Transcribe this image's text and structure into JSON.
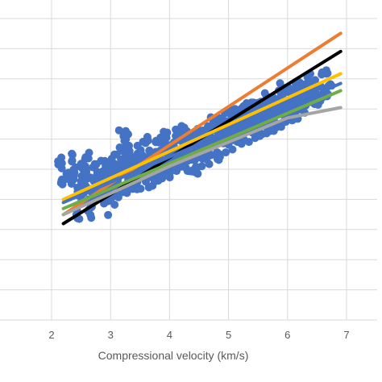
{
  "chart_data": {
    "type": "scatter",
    "xlabel": "Compressional velocity (km/s)",
    "ylabel": "",
    "xlim": [
      1.5,
      7.1
    ],
    "x_ticks": [
      2,
      3,
      4,
      5,
      6,
      7
    ],
    "grid": true,
    "legend": "none",
    "scatter_color": "#4472C4",
    "scatter_points": [
      [
        2.15,
        0.12
      ],
      [
        2.3,
        0.14
      ],
      [
        2.35,
        0.25
      ],
      [
        2.45,
        -0.35
      ],
      [
        2.5,
        -0.25
      ],
      [
        2.55,
        0.05
      ],
      [
        2.6,
        0.2
      ],
      [
        2.65,
        -0.4
      ],
      [
        2.7,
        -0.15
      ],
      [
        2.75,
        0.02
      ],
      [
        2.8,
        -0.02
      ],
      [
        2.85,
        0.1
      ],
      [
        2.9,
        -0.3
      ],
      [
        2.95,
        0.03
      ],
      [
        3.0,
        -0.1
      ],
      [
        3.05,
        0.22
      ],
      [
        3.1,
        -0.22
      ],
      [
        3.15,
        0.18
      ],
      [
        3.2,
        0.75
      ],
      [
        3.25,
        0.05
      ],
      [
        3.3,
        0.55
      ],
      [
        3.35,
        0.3
      ],
      [
        3.4,
        0.1
      ],
      [
        3.45,
        0.25
      ],
      [
        3.5,
        0.4
      ],
      [
        3.55,
        0.15
      ],
      [
        3.6,
        0.5
      ],
      [
        3.65,
        0.35
      ],
      [
        3.7,
        0.1
      ],
      [
        3.75,
        0.3
      ],
      [
        3.8,
        0.45
      ],
      [
        3.85,
        0.2
      ],
      [
        3.9,
        0.55
      ],
      [
        3.95,
        0.35
      ],
      [
        4.0,
        0.25
      ],
      [
        4.05,
        0.45
      ],
      [
        4.1,
        0.6
      ],
      [
        4.15,
        0.4
      ],
      [
        4.2,
        0.7
      ],
      [
        4.25,
        0.5
      ],
      [
        4.3,
        0.35
      ],
      [
        4.35,
        0.6
      ],
      [
        4.4,
        0.55
      ],
      [
        4.45,
        0.4
      ],
      [
        4.5,
        0.65
      ],
      [
        4.55,
        0.5
      ],
      [
        4.6,
        0.75
      ],
      [
        4.65,
        0.55
      ],
      [
        4.7,
        0.7
      ],
      [
        4.75,
        0.85
      ],
      [
        4.8,
        0.6
      ],
      [
        4.85,
        0.8
      ],
      [
        4.9,
        0.7
      ],
      [
        4.95,
        0.9
      ],
      [
        5.0,
        0.75
      ],
      [
        5.05,
        0.95
      ],
      [
        5.1,
        0.8
      ],
      [
        5.15,
        1.0
      ],
      [
        5.2,
        0.85
      ],
      [
        5.25,
        1.05
      ],
      [
        5.3,
        0.9
      ],
      [
        5.35,
        1.1
      ],
      [
        5.4,
        0.95
      ],
      [
        5.45,
        1.05
      ],
      [
        5.5,
        1.15
      ],
      [
        5.55,
        1.0
      ],
      [
        5.6,
        1.2
      ],
      [
        5.65,
        1.05
      ],
      [
        5.7,
        1.25
      ],
      [
        5.75,
        1.1
      ],
      [
        5.8,
        1.3
      ],
      [
        5.85,
        1.15
      ],
      [
        5.9,
        1.35
      ],
      [
        5.95,
        1.2
      ],
      [
        6.0,
        1.3
      ],
      [
        6.05,
        1.25
      ],
      [
        6.1,
        1.4
      ],
      [
        6.15,
        1.3
      ],
      [
        6.2,
        1.45
      ],
      [
        6.25,
        1.35
      ],
      [
        6.3,
        1.5
      ],
      [
        6.35,
        1.4
      ],
      [
        6.4,
        1.55
      ],
      [
        6.5,
        1.5
      ],
      [
        6.6,
        1.6
      ],
      [
        6.7,
        1.65
      ]
    ],
    "series": [
      {
        "color": "#ED7D31",
        "x": [
          2.2,
          6.9
        ],
        "y": [
          -0.55,
          2.45
        ]
      },
      {
        "color": "#000000",
        "x": [
          2.2,
          6.9
        ],
        "y": [
          -0.7,
          2.15
        ]
      },
      {
        "color": "#FFC000",
        "x": [
          2.2,
          6.9
        ],
        "y": [
          -0.3,
          1.78
        ]
      },
      {
        "color": "#70AD47",
        "x": [
          2.2,
          6.9
        ],
        "y": [
          -0.45,
          1.5
        ]
      },
      {
        "color": "#4472C4",
        "x": [
          2.2,
          6.9
        ],
        "y": [
          -0.35,
          1.62
        ]
      },
      {
        "color": "#A5A5A5",
        "x": [
          2.2,
          3.0,
          4.0,
          5.0,
          6.0,
          6.9
        ],
        "y": [
          -0.55,
          -0.2,
          0.25,
          0.65,
          1.05,
          1.22
        ]
      }
    ]
  }
}
